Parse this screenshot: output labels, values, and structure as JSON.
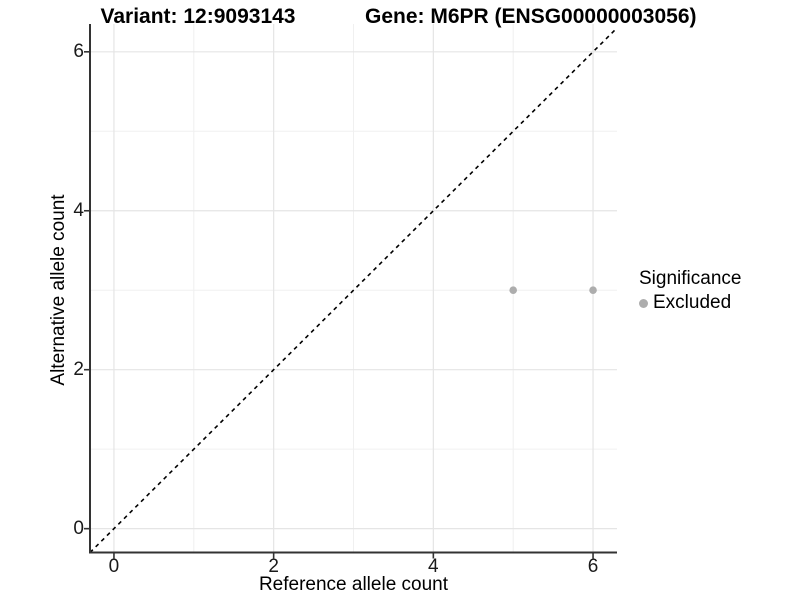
{
  "titles": {
    "variant": "Variant: 12:9093143",
    "gene": "Gene: M6PR (ENSG00000003056)"
  },
  "axes": {
    "x_label": "Reference allele count",
    "y_label": "Alternative allele count"
  },
  "legend": {
    "title": "Significance",
    "items": [
      {
        "label": "Excluded",
        "color": "#adadad"
      }
    ]
  },
  "colors": {
    "background": "#ffffff",
    "grid_major": "#e5e5e5",
    "grid_minor": "#f0f0f0",
    "axis_line": "#333333",
    "tick_mark": "#333333",
    "identity_line": "#000000",
    "point": "#adadad"
  },
  "chart_data": {
    "type": "scatter",
    "title": "Variant: 12:9093143   Gene: M6PR (ENSG00000003056)",
    "xlabel": "Reference allele count",
    "ylabel": "Alternative allele count",
    "series": [
      {
        "name": "Excluded",
        "color": "#adadad",
        "points": [
          [
            5,
            3
          ],
          [
            6,
            3
          ]
        ]
      }
    ],
    "reference_line": {
      "type": "identity",
      "equation": "y = x",
      "style": "dashed",
      "color": "#000000"
    },
    "xlim": [
      -0.3,
      6.3
    ],
    "ylim": [
      -0.3,
      6.35
    ],
    "xticks": [
      0,
      2,
      4,
      6
    ],
    "yticks": [
      0,
      2,
      4,
      6
    ],
    "minor_xticks": [
      1,
      3,
      5
    ],
    "minor_yticks": [
      1,
      3,
      5
    ],
    "grid": true,
    "legend_position": "right",
    "legend_title": "Significance"
  }
}
